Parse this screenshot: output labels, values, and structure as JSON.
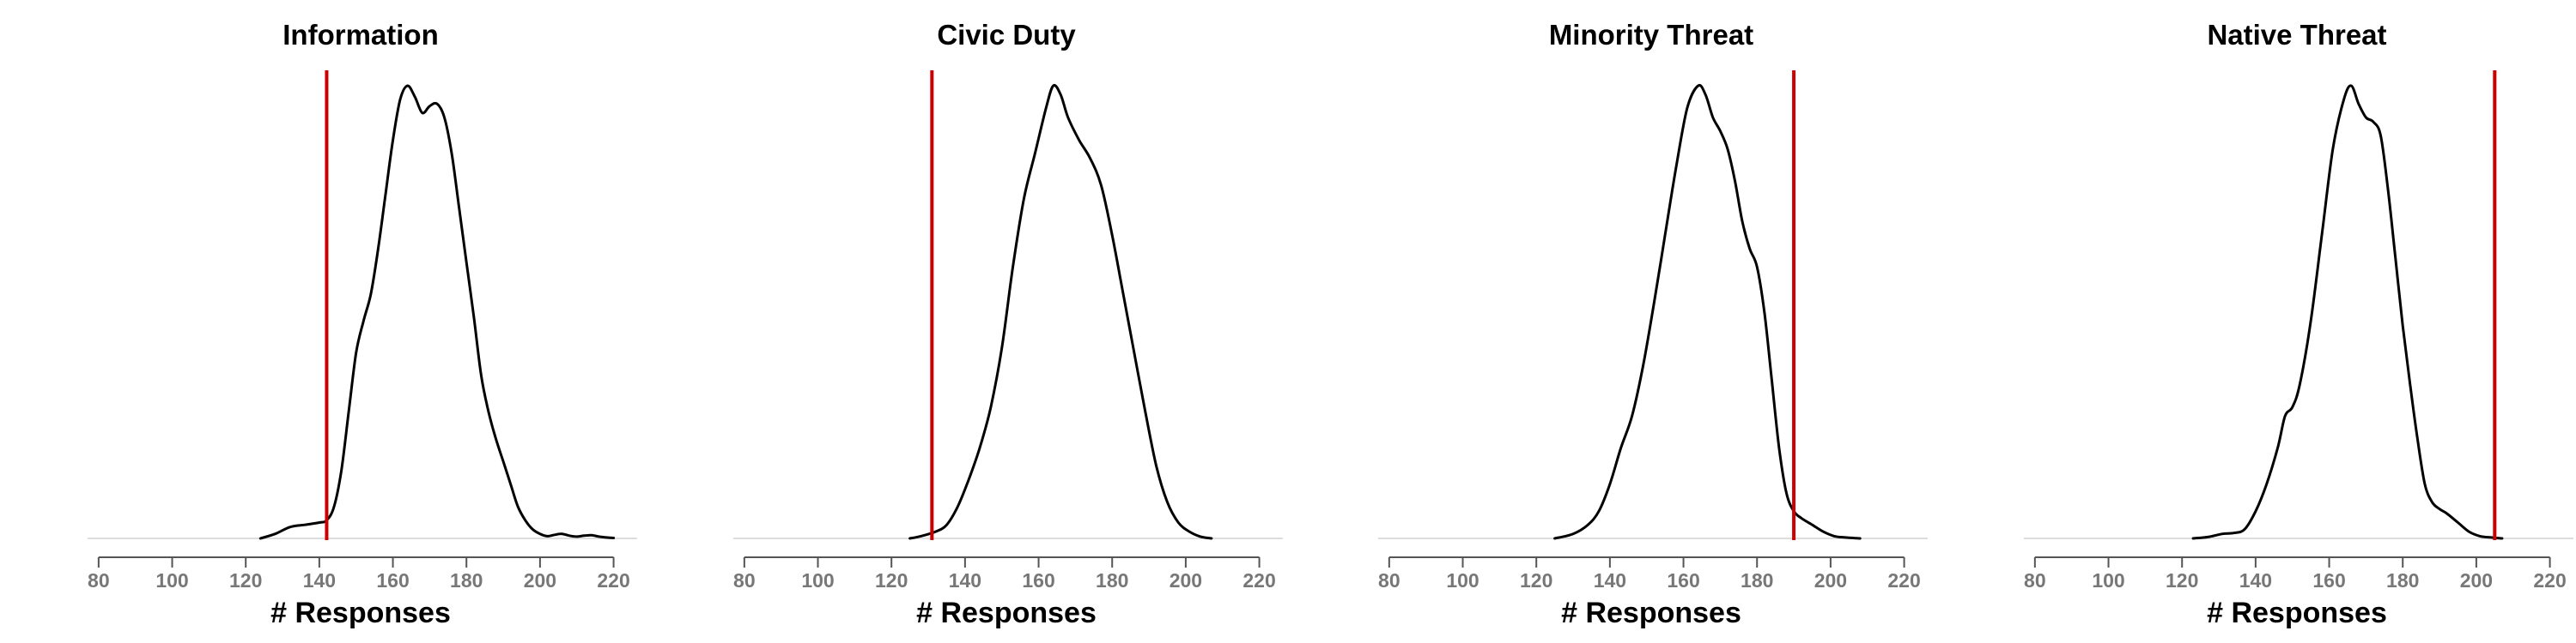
{
  "chart_data": [
    {
      "type": "area",
      "title": "Information",
      "xlabel": "# Responses",
      "ylabel": "",
      "xlim": [
        77,
        225
      ],
      "xticks": [
        80,
        100,
        120,
        140,
        160,
        180,
        200,
        220
      ],
      "grid": false,
      "legend": "none",
      "density_color": "#000000",
      "reference_line": {
        "x": 142,
        "color": "#cc0000"
      },
      "series": [
        {
          "x": [
            124,
            128,
            132,
            136,
            140,
            142,
            144,
            146,
            148,
            150,
            152,
            154,
            156,
            158,
            160,
            162,
            164,
            166,
            168,
            170,
            172,
            174,
            176,
            178,
            180,
            182,
            184,
            186,
            188,
            190,
            192,
            194,
            196,
            198,
            200,
            202,
            204,
            206,
            208,
            210,
            212,
            214,
            216,
            218,
            220
          ],
          "y": [
            0.0,
            0.01,
            0.025,
            0.03,
            0.035,
            0.04,
            0.07,
            0.15,
            0.28,
            0.41,
            0.48,
            0.54,
            0.64,
            0.76,
            0.88,
            0.97,
            1.0,
            0.975,
            0.94,
            0.955,
            0.96,
            0.93,
            0.85,
            0.73,
            0.61,
            0.49,
            0.36,
            0.28,
            0.22,
            0.17,
            0.12,
            0.07,
            0.04,
            0.02,
            0.01,
            0.005,
            0.008,
            0.01,
            0.006,
            0.004,
            0.006,
            0.007,
            0.004,
            0.002,
            0.001
          ]
        }
      ]
    },
    {
      "type": "area",
      "title": "Civic Duty",
      "xlabel": "# Responses",
      "ylabel": "",
      "xlim": [
        77,
        225
      ],
      "xticks": [
        80,
        100,
        120,
        140,
        160,
        180,
        200,
        220
      ],
      "grid": false,
      "legend": "none",
      "density_color": "#000000",
      "reference_line": {
        "x": 131,
        "color": "#cc0000"
      },
      "series": [
        {
          "x": [
            125,
            128,
            132,
            135,
            138,
            141,
            144,
            147,
            150,
            153,
            156,
            159,
            162,
            164,
            166,
            168,
            171,
            174,
            177,
            180,
            183,
            186,
            189,
            192,
            195,
            198,
            201,
            204,
            207
          ],
          "y": [
            0.0,
            0.005,
            0.015,
            0.03,
            0.07,
            0.13,
            0.2,
            0.29,
            0.42,
            0.6,
            0.75,
            0.85,
            0.95,
            1.0,
            0.98,
            0.93,
            0.88,
            0.84,
            0.78,
            0.67,
            0.54,
            0.41,
            0.28,
            0.16,
            0.08,
            0.035,
            0.015,
            0.004,
            0.0
          ]
        }
      ]
    },
    {
      "type": "area",
      "title": "Minority Threat",
      "xlabel": "# Responses",
      "ylabel": "",
      "xlim": [
        77,
        225
      ],
      "xticks": [
        80,
        100,
        120,
        140,
        160,
        180,
        200,
        220
      ],
      "grid": false,
      "legend": "none",
      "density_color": "#000000",
      "reference_line": {
        "x": 190,
        "color": "#cc0000"
      },
      "series": [
        {
          "x": [
            125,
            130,
            134,
            137,
            140,
            143,
            146,
            149,
            152,
            155,
            158,
            161,
            164,
            166,
            168,
            170,
            172,
            174,
            176,
            178,
            180,
            182,
            184,
            186,
            188,
            190,
            192,
            195,
            198,
            201,
            204,
            208
          ],
          "y": [
            0.0,
            0.01,
            0.03,
            0.06,
            0.12,
            0.2,
            0.27,
            0.38,
            0.52,
            0.67,
            0.82,
            0.95,
            1.0,
            0.98,
            0.93,
            0.9,
            0.86,
            0.79,
            0.7,
            0.64,
            0.6,
            0.5,
            0.35,
            0.2,
            0.1,
            0.06,
            0.045,
            0.03,
            0.015,
            0.005,
            0.002,
            0.0
          ]
        }
      ]
    },
    {
      "type": "area",
      "title": "Native Threat",
      "xlabel": "# Responses",
      "ylabel": "",
      "xlim": [
        77,
        225
      ],
      "xticks": [
        80,
        100,
        120,
        140,
        160,
        180,
        200,
        220
      ],
      "grid": false,
      "legend": "none",
      "density_color": "#000000",
      "reference_line": {
        "x": 205,
        "color": "#cc0000"
      },
      "series": [
        {
          "x": [
            123,
            127,
            131,
            134,
            137,
            140,
            143,
            146,
            148,
            150,
            152,
            155,
            158,
            161,
            164,
            166,
            168,
            170,
            172,
            174,
            176,
            178,
            180,
            182,
            184,
            186,
            188,
            190,
            192,
            195,
            198,
            201,
            204,
            207
          ],
          "y": [
            0.0,
            0.003,
            0.01,
            0.012,
            0.02,
            0.06,
            0.12,
            0.2,
            0.27,
            0.29,
            0.34,
            0.48,
            0.67,
            0.86,
            0.97,
            1.0,
            0.96,
            0.93,
            0.92,
            0.89,
            0.77,
            0.62,
            0.47,
            0.34,
            0.22,
            0.12,
            0.08,
            0.065,
            0.055,
            0.035,
            0.015,
            0.005,
            0.002,
            0.0
          ]
        }
      ]
    }
  ]
}
